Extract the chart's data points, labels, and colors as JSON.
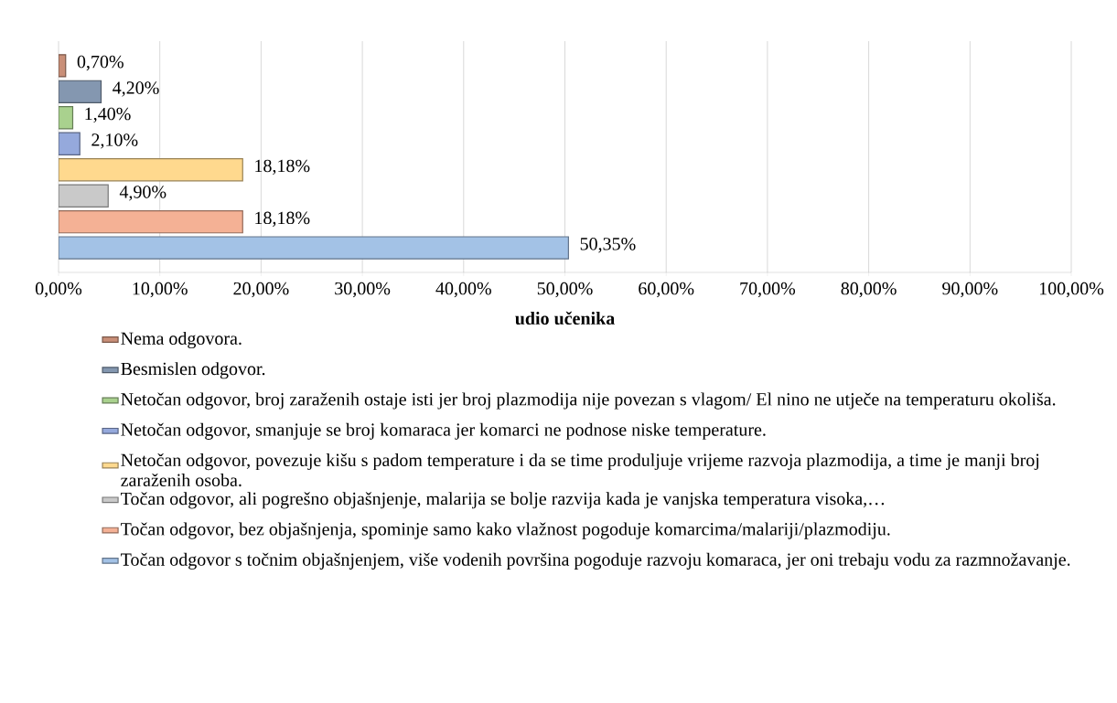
{
  "chart_data": {
    "type": "bar",
    "orientation": "horizontal",
    "xlabel": "udio učenika",
    "categories": [
      null
    ],
    "series": [
      {
        "name": "Nema odgovora.",
        "color": "#c98f78",
        "values": [
          0.7
        ],
        "value_labels": [
          "0,70%"
        ]
      },
      {
        "name": "Besmislen odgovor.",
        "color": "#8497b0",
        "values": [
          4.2
        ],
        "value_labels": [
          "4,20%"
        ]
      },
      {
        "name": "Netočan odgovor, broj zaraženih ostaje isti jer broj plazmodija nije povezan s vlagom/ El nino ne utječe na temperaturu okoliša.",
        "color": "#a9d18e",
        "values": [
          1.4
        ],
        "value_labels": [
          "1,40%"
        ]
      },
      {
        "name": "Netočan odgovor, smanjuje se broj komaraca jer komarci ne podnose niske temperature.",
        "color": "#95a9dc",
        "values": [
          2.1
        ],
        "value_labels": [
          "2,10%"
        ]
      },
      {
        "name": "Netočan odgovor, povezuje kišu s padom temperature i da se time produljuje vrijeme razvoja plazmodija, a time je manji broj zaraženih osoba.",
        "color": "#ffd98e",
        "values": [
          18.18
        ],
        "value_labels": [
          "18,18%"
        ]
      },
      {
        "name": "Točan odgovor, ali pogrešno objašnjenje, malarija se bolje razvija kada je vanjska temperatura visoka,…",
        "color": "#c9c9c9",
        "values": [
          4.9
        ],
        "value_labels": [
          "4,90%"
        ]
      },
      {
        "name": "Točan odgovor, bez objašnjenja, spominje samo kako vlažnost pogoduje komarcima/malariji/plazmodiju.",
        "color": "#f4b195",
        "values": [
          18.18
        ],
        "value_labels": [
          "18,18%"
        ]
      },
      {
        "name": "Točan odgovor s točnim objašnjenjem, više vodenih površina pogoduje razvoju komaraca, jer oni trebaju vodu za razmnožavanje.",
        "color": "#a3c2e6",
        "values": [
          50.35
        ],
        "value_labels": [
          "50,35%"
        ]
      }
    ],
    "xlim": [
      0,
      100
    ],
    "xticks": [
      {
        "value": 0,
        "label": "0,00%"
      },
      {
        "value": 10,
        "label": "10,00%"
      },
      {
        "value": 20,
        "label": "20,00%"
      },
      {
        "value": 30,
        "label": "30,00%"
      },
      {
        "value": 40,
        "label": "40,00%"
      },
      {
        "value": 50,
        "label": "50,00%"
      },
      {
        "value": 60,
        "label": "60,00%"
      },
      {
        "value": 70,
        "label": "70,00%"
      },
      {
        "value": 80,
        "label": "80,00%"
      },
      {
        "value": 90,
        "label": "90,00%"
      },
      {
        "value": 100,
        "label": "100,00%"
      }
    ],
    "grid": "x",
    "legend": "bottom"
  }
}
